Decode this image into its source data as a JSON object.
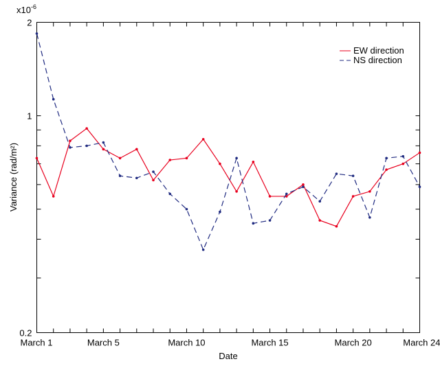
{
  "chart_data": {
    "type": "line",
    "xlabel": "Date",
    "ylabel": "Variance (rad/m²)",
    "y_exponent_label": "x10",
    "y_exponent_power": "-6",
    "x_tick_labels": [
      "March 1",
      "March 5",
      "March 10",
      "March 15",
      "March 20",
      "March 24"
    ],
    "x_tick_values": [
      1,
      5,
      10,
      15,
      20,
      24
    ],
    "y_tick_labels": [
      "2",
      "1",
      "0.2"
    ],
    "xlim": [
      1,
      24
    ],
    "ylim": [
      0.2,
      2
    ],
    "legend_position": "top-right",
    "series": [
      {
        "name": "EW direction",
        "color": "#e8001e",
        "style": "solid",
        "x": [
          1,
          2,
          3,
          4,
          5,
          6,
          7,
          8,
          9,
          10,
          11,
          12,
          13,
          14,
          15,
          16,
          17,
          18,
          19,
          20,
          21,
          22,
          23,
          24
        ],
        "values": [
          0.73,
          0.55,
          0.83,
          0.91,
          0.78,
          0.73,
          0.78,
          0.62,
          0.72,
          0.73,
          0.84,
          0.7,
          0.57,
          0.71,
          0.55,
          0.55,
          0.6,
          0.46,
          0.44,
          0.55,
          0.57,
          0.67,
          0.7,
          0.76
        ]
      },
      {
        "name": "NS direction",
        "color": "#1f2a80",
        "style": "dashed",
        "x": [
          1,
          2,
          3,
          4,
          5,
          6,
          7,
          8,
          9,
          10,
          11,
          12,
          13,
          14,
          15,
          16,
          17,
          18,
          19,
          20,
          21,
          22,
          23,
          24
        ],
        "values": [
          1.84,
          1.13,
          0.79,
          0.8,
          0.82,
          0.64,
          0.63,
          0.66,
          0.56,
          0.5,
          0.37,
          0.49,
          0.73,
          0.45,
          0.46,
          0.56,
          0.59,
          0.53,
          0.65,
          0.64,
          0.47,
          0.73,
          0.74,
          0.59
        ]
      }
    ]
  }
}
